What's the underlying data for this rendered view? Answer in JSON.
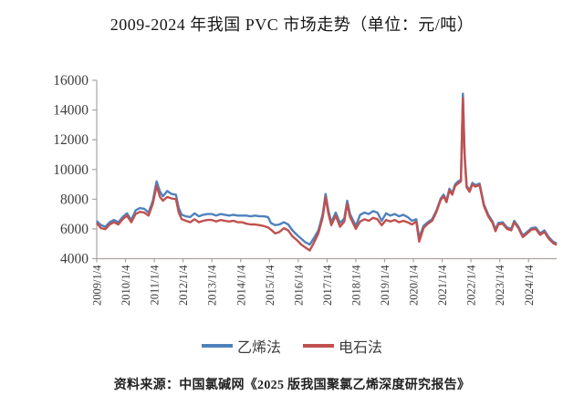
{
  "title": "2009-2024 年我国 PVC 市场走势（单位：元/吨）",
  "source_note": "资料来源：中国氯碱网《2025 版我国聚氯乙烯深度研究报告》",
  "legend": [
    {
      "label": "乙烯法",
      "color": "#4f81bd"
    },
    {
      "label": "电石法",
      "color": "#c0504d"
    }
  ],
  "chart_data": {
    "type": "line",
    "title": "2009-2024 年我国 PVC 市场走势（单位：元/吨）",
    "unit": "元/吨",
    "ylim": [
      4000,
      16000
    ],
    "y_ticks": [
      4000,
      6000,
      8000,
      10000,
      12000,
      14000,
      16000
    ],
    "x_tick_labels": [
      "2009/1/4",
      "2010/1/4",
      "2011/1/4",
      "2012/1/4",
      "2013/1/4",
      "2014/1/4",
      "2015/1/4",
      "2016/1/4",
      "2017/1/4",
      "2018/1/4",
      "2019/1/4",
      "2020/1/4",
      "2021/1/4",
      "2022/1/4",
      "2023/1/4",
      "2024/1/4"
    ],
    "x_start_year": 2009,
    "grid": false,
    "legend_position": "bottom",
    "axis_color": "#aba3a0",
    "tick_label_color": "#3d3d3d",
    "x": [
      2009.02,
      2009.15,
      2009.3,
      2009.45,
      2009.6,
      2009.75,
      2009.9,
      2010.05,
      2010.2,
      2010.35,
      2010.5,
      2010.65,
      2010.8,
      2010.95,
      2011.08,
      2011.2,
      2011.3,
      2011.45,
      2011.6,
      2011.75,
      2011.85,
      2011.95,
      2012.1,
      2012.25,
      2012.4,
      2012.55,
      2012.7,
      2012.85,
      2013.0,
      2013.15,
      2013.3,
      2013.45,
      2013.6,
      2013.75,
      2013.9,
      2014.05,
      2014.2,
      2014.35,
      2014.5,
      2014.65,
      2014.8,
      2014.95,
      2015.05,
      2015.2,
      2015.35,
      2015.5,
      2015.65,
      2015.8,
      2015.95,
      2016.1,
      2016.25,
      2016.4,
      2016.55,
      2016.7,
      2016.85,
      2016.95,
      2017.05,
      2017.15,
      2017.3,
      2017.45,
      2017.6,
      2017.7,
      2017.8,
      2017.9,
      2018.0,
      2018.15,
      2018.3,
      2018.45,
      2018.6,
      2018.75,
      2018.9,
      2019.05,
      2019.2,
      2019.35,
      2019.5,
      2019.65,
      2019.8,
      2019.95,
      2020.1,
      2020.2,
      2020.35,
      2020.5,
      2020.65,
      2020.8,
      2020.95,
      2021.05,
      2021.15,
      2021.25,
      2021.35,
      2021.45,
      2021.55,
      2021.65,
      2021.72,
      2021.78,
      2021.85,
      2021.95,
      2022.05,
      2022.15,
      2022.3,
      2022.45,
      2022.6,
      2022.75,
      2022.85,
      2022.95,
      2023.1,
      2023.25,
      2023.4,
      2023.5,
      2023.65,
      2023.8,
      2023.95,
      2024.1,
      2024.25,
      2024.4,
      2024.55,
      2024.7,
      2024.85,
      2024.95
    ],
    "series": [
      {
        "name": "乙烯法",
        "color": "#4f81bd",
        "values": [
          6500,
          6250,
          6150,
          6450,
          6600,
          6450,
          6800,
          7050,
          6600,
          7250,
          7400,
          7350,
          7100,
          7900,
          9200,
          8500,
          8200,
          8550,
          8350,
          8300,
          7400,
          6950,
          6850,
          6800,
          7050,
          6850,
          6950,
          7000,
          7000,
          6900,
          7000,
          6950,
          6900,
          6950,
          6900,
          6900,
          6900,
          6850,
          6900,
          6850,
          6850,
          6800,
          6400,
          6250,
          6300,
          6450,
          6300,
          5900,
          5600,
          5350,
          5100,
          4950,
          5400,
          5900,
          7000,
          8350,
          7200,
          6450,
          7100,
          6400,
          6700,
          7900,
          7000,
          6600,
          6200,
          6950,
          7100,
          7000,
          7200,
          7100,
          6550,
          7050,
          6900,
          7000,
          6850,
          6950,
          6800,
          6550,
          6650,
          5400,
          6200,
          6450,
          6650,
          7250,
          8050,
          8300,
          7900,
          8700,
          8400,
          9000,
          9200,
          9300,
          15100,
          11000,
          8900,
          8600,
          9100,
          8950,
          9050,
          7650,
          6950,
          6500,
          5950,
          6400,
          6450,
          6100,
          6000,
          6550,
          6150,
          5550,
          5800,
          6050,
          6100,
          5700,
          5900,
          5450,
          5150,
          5050
        ]
      },
      {
        "name": "电石法",
        "color": "#c0504d",
        "values": [
          6350,
          6050,
          5980,
          6300,
          6450,
          6300,
          6650,
          6900,
          6450,
          7000,
          7150,
          7100,
          6900,
          7700,
          8900,
          8150,
          7900,
          8150,
          8050,
          8000,
          7100,
          6650,
          6550,
          6450,
          6650,
          6450,
          6550,
          6600,
          6600,
          6500,
          6600,
          6550,
          6500,
          6550,
          6450,
          6450,
          6350,
          6300,
          6300,
          6250,
          6200,
          6100,
          5950,
          5700,
          5800,
          6050,
          5900,
          5500,
          5250,
          4950,
          4750,
          4550,
          5100,
          5700,
          6800,
          8150,
          7000,
          6250,
          6900,
          6150,
          6500,
          7700,
          6800,
          6400,
          6000,
          6500,
          6650,
          6550,
          6750,
          6650,
          6250,
          6600,
          6500,
          6600,
          6450,
          6550,
          6450,
          6300,
          6500,
          5150,
          6050,
          6350,
          6550,
          7150,
          7950,
          8200,
          7800,
          8600,
          8300,
          8900,
          9050,
          9200,
          14800,
          10800,
          8800,
          8500,
          9000,
          8850,
          8950,
          7550,
          6850,
          6400,
          5850,
          6300,
          6350,
          6000,
          5900,
          6450,
          6050,
          5450,
          5700,
          5950,
          6000,
          5600,
          5800,
          5350,
          5050,
          4950
        ]
      }
    ]
  }
}
